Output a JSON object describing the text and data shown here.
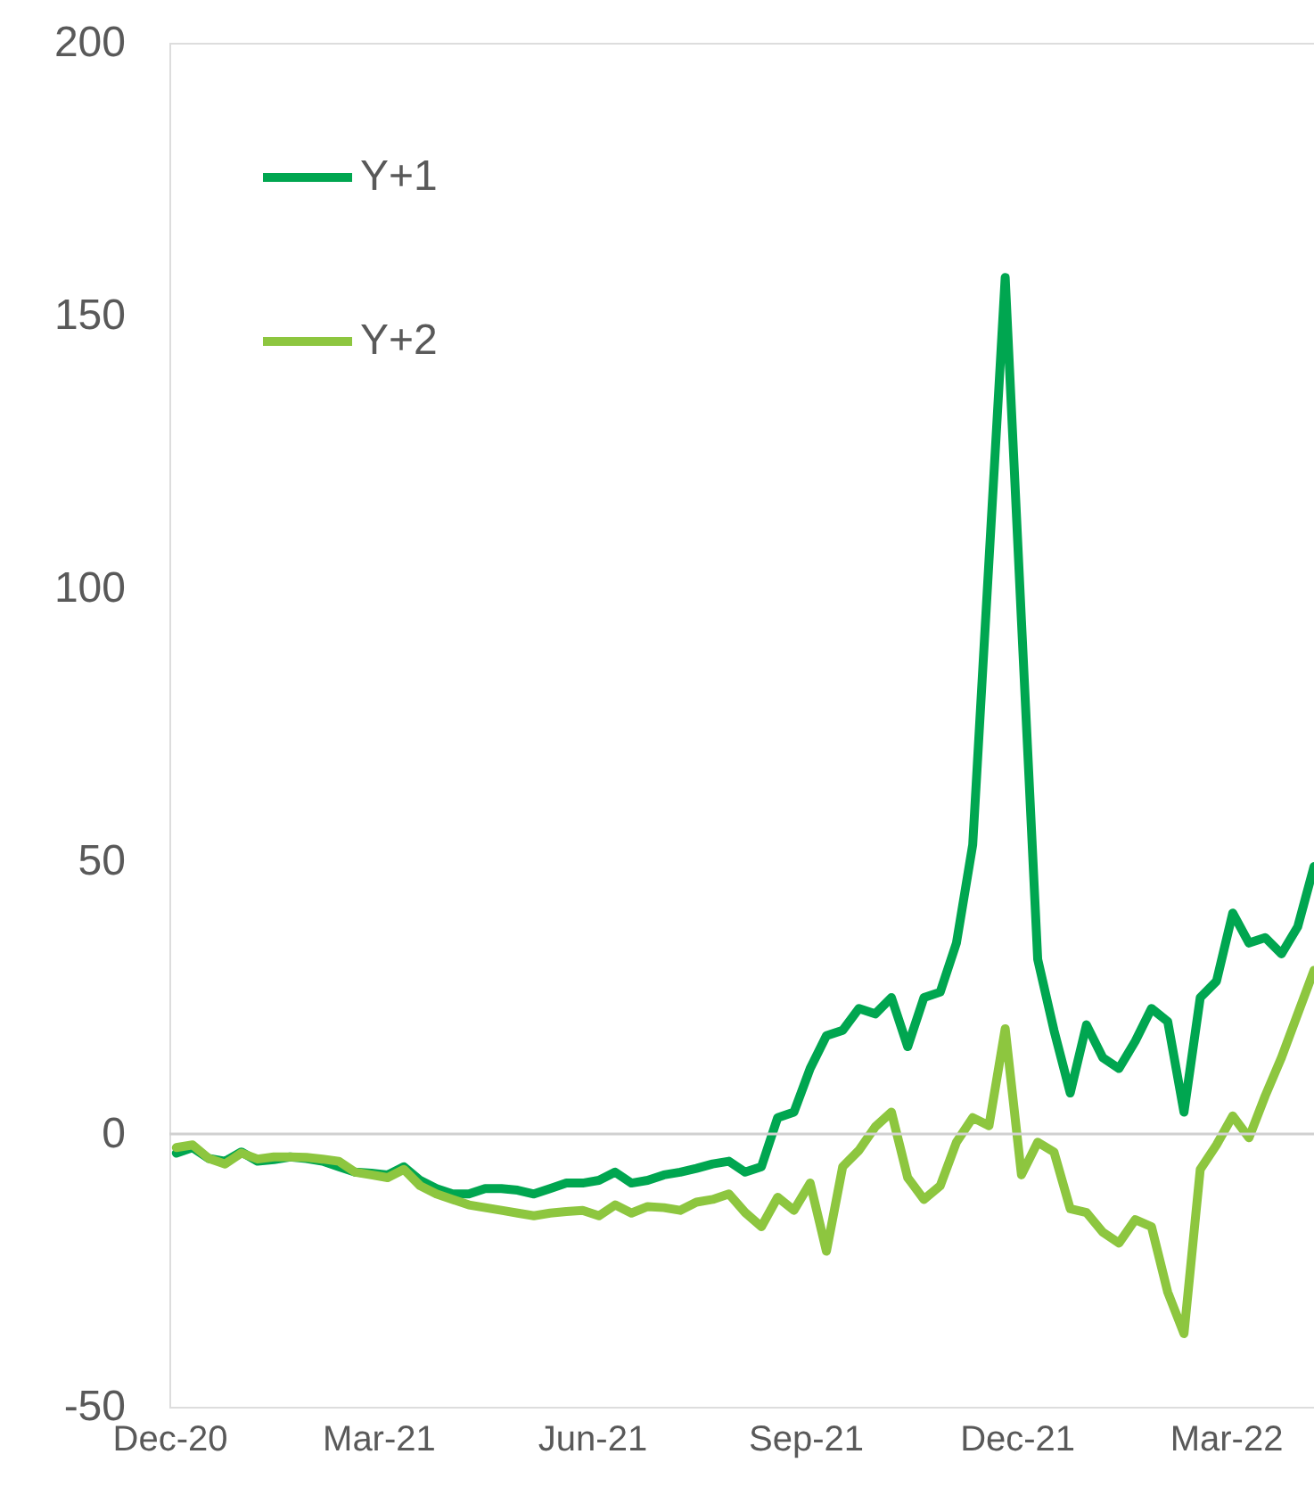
{
  "chart_data": {
    "type": "line",
    "x": [
      "2020-12-04",
      "2020-12-11",
      "2020-12-18",
      "2020-12-25",
      "2021-01-01",
      "2021-01-08",
      "2021-01-15",
      "2021-01-22",
      "2021-01-29",
      "2021-02-05",
      "2021-02-12",
      "2021-02-19",
      "2021-02-26",
      "2021-03-05",
      "2021-03-12",
      "2021-03-19",
      "2021-03-26",
      "2021-04-02",
      "2021-04-09",
      "2021-04-16",
      "2021-04-23",
      "2021-04-30",
      "2021-05-07",
      "2021-05-14",
      "2021-05-21",
      "2021-05-28",
      "2021-06-04",
      "2021-06-11",
      "2021-06-18",
      "2021-06-25",
      "2021-07-02",
      "2021-07-09",
      "2021-07-16",
      "2021-07-23",
      "2021-07-30",
      "2021-08-06",
      "2021-08-13",
      "2021-08-20",
      "2021-08-27",
      "2021-09-03",
      "2021-09-10",
      "2021-09-17",
      "2021-09-24",
      "2021-10-01",
      "2021-10-08",
      "2021-10-15",
      "2021-10-22",
      "2021-10-29",
      "2021-11-05",
      "2021-11-12",
      "2021-11-19",
      "2021-11-26",
      "2021-12-03",
      "2021-12-10",
      "2021-12-17",
      "2021-12-24",
      "2021-12-31",
      "2022-01-07",
      "2022-01-14",
      "2022-01-21",
      "2022-01-28",
      "2022-02-04",
      "2022-02-11",
      "2022-02-18",
      "2022-02-25",
      "2022-03-04",
      "2022-03-11",
      "2022-03-18",
      "2022-03-25",
      "2022-04-01",
      "2022-04-08"
    ],
    "series": [
      {
        "name": "Y+1",
        "color": "#00a650",
        "values": [
          -3.5,
          -2.5,
          -4.5,
          -5,
          -3.3,
          -5,
          -4.7,
          -4.2,
          -4.5,
          -5,
          -6,
          -7,
          -7.2,
          -7.5,
          -6,
          -8.5,
          -10,
          -11,
          -11,
          -10,
          -10,
          -10.3,
          -11,
          -10,
          -9,
          -9,
          -8.5,
          -7,
          -9,
          -8.5,
          -7.5,
          -7,
          -6.3,
          -5.5,
          -5,
          -7,
          -6,
          3,
          4,
          12,
          18,
          19,
          23,
          22,
          25,
          16,
          25,
          26,
          35,
          53,
          105,
          157,
          94,
          32,
          19,
          7.5,
          20,
          14,
          12,
          17,
          23,
          20.6,
          4,
          25,
          28,
          40.5,
          35,
          36,
          33,
          38,
          49
        ]
      },
      {
        "name": "Y+2",
        "color": "#8dc63f",
        "values": [
          -2.5,
          -2,
          -4.5,
          -5.5,
          -3.5,
          -4.6,
          -4.2,
          -4.2,
          -4.3,
          -4.6,
          -5,
          -7,
          -7.5,
          -8,
          -6.5,
          -9.5,
          -11,
          -12,
          -13,
          -13.5,
          -14,
          -14.5,
          -15,
          -14.5,
          -14.2,
          -14,
          -15,
          -13,
          -14.5,
          -13.3,
          -13.5,
          -14,
          -12.5,
          -12,
          -11,
          -14.4,
          -17,
          -11.6,
          -14,
          -9,
          -21.5,
          -6,
          -3,
          1.3,
          4,
          -8,
          -12,
          -9.5,
          -1.5,
          3,
          1.5,
          19.3,
          -7.5,
          -1.5,
          -3.3,
          -13.7,
          -14.4,
          -18,
          -20,
          -15.7,
          -17,
          -29,
          -36.6,
          -6.5,
          -2,
          3.3,
          -0.7,
          7,
          14,
          22,
          30
        ]
      }
    ],
    "xlim": [
      "2020-12-01",
      "2022-04-08"
    ],
    "xticks": [
      {
        "value": "2020-12-01",
        "label": "Dec-20"
      },
      {
        "value": "2021-03-01",
        "label": "Mar-21"
      },
      {
        "value": "2021-06-01",
        "label": "Jun-21"
      },
      {
        "value": "2021-09-01",
        "label": "Sep-21"
      },
      {
        "value": "2021-12-01",
        "label": "Dec-21"
      },
      {
        "value": "2022-03-01",
        "label": "Mar-22"
      }
    ],
    "ylim": [
      -50,
      200
    ],
    "yticks": [
      -50,
      0,
      50,
      100,
      150,
      200
    ],
    "ref_lines": [
      {
        "axis": "y",
        "value": 0,
        "color": "#d0d0d0"
      }
    ],
    "grid": false,
    "legend": "top left",
    "line_style": "solid",
    "marker": "none"
  }
}
